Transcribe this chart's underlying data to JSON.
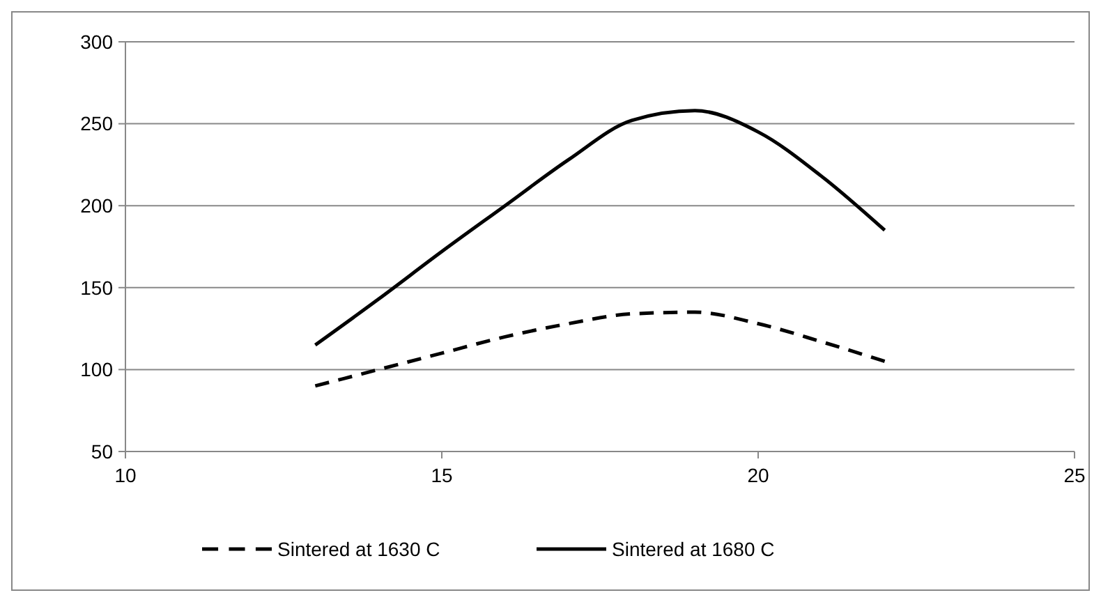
{
  "chart_data": {
    "type": "line",
    "xlim": [
      10,
      25
    ],
    "xticks": [
      10,
      15,
      20,
      25
    ],
    "ylim": [
      50,
      300
    ],
    "yticks": [
      50,
      100,
      150,
      200,
      250,
      300
    ],
    "grid": "y",
    "legend": "bottom",
    "marker": "none",
    "series": [
      {
        "name": "Sintered at 1630 C",
        "color": "#000000",
        "line_style": "dashed",
        "x": [
          13,
          14,
          15,
          16,
          17,
          18,
          19,
          20,
          21,
          22
        ],
        "values": [
          90,
          100,
          110,
          120,
          128,
          134,
          135,
          128,
          117,
          105
        ]
      },
      {
        "name": "Sintered at 1680 C",
        "color": "#000000",
        "line_style": "solid",
        "x": [
          13,
          14,
          15,
          16,
          17,
          18,
          19,
          20,
          21,
          22
        ],
        "values": [
          115,
          143,
          172,
          200,
          228,
          252,
          258,
          245,
          218,
          185
        ]
      }
    ]
  }
}
